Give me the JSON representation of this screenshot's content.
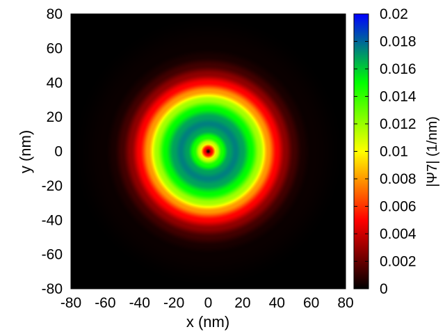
{
  "chart_data": {
    "type": "heatmap",
    "xlabel": "x (nm)",
    "ylabel": "y (nm)",
    "xlim": [
      -80,
      80
    ],
    "ylim": [
      -80,
      80
    ],
    "x_ticks": [
      -80,
      -60,
      -40,
      -20,
      0,
      20,
      40,
      60,
      80
    ],
    "y_ticks": [
      -80,
      -60,
      -40,
      -20,
      0,
      20,
      40,
      60,
      80
    ],
    "colorbar": {
      "label": "|Ψ7| (1/nm)",
      "range": [
        0,
        0.02
      ],
      "ticks": [
        "0",
        "0.002",
        "0.004",
        "0.006",
        "0.008",
        "0.01",
        "0.012",
        "0.014",
        "0.016",
        "0.018",
        "0.02"
      ],
      "palette": [
        "#000000",
        "#ff0000",
        "#ffff00",
        "#00ff00",
        "#0000ff"
      ]
    },
    "field": {
      "description_of_shape": "radially symmetric ring centered at origin",
      "radial_profile": {
        "r_nm": [
          0,
          2,
          5,
          8,
          12,
          16,
          20,
          25,
          30,
          35,
          40,
          45,
          50,
          55,
          60,
          80
        ],
        "value": [
          0.0,
          0.005,
          0.011,
          0.0145,
          0.0168,
          0.0175,
          0.0168,
          0.015,
          0.0118,
          0.008,
          0.005,
          0.0028,
          0.0013,
          0.0005,
          0.0002,
          0.0
        ]
      }
    }
  }
}
